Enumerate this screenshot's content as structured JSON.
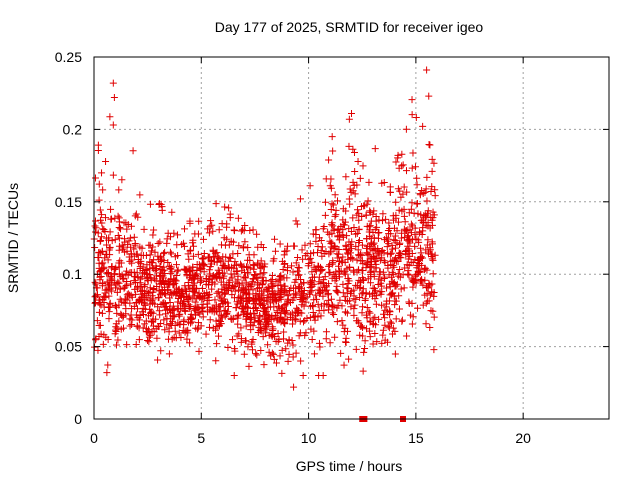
{
  "chart_data": {
    "type": "scatter",
    "title": "Day 177 of 2025, SRMTID for receiver igeo",
    "xlabel": "GPS time / hours",
    "ylabel": "SRMTID / TECUs",
    "xlim": [
      0,
      24
    ],
    "ylim": [
      0,
      0.25
    ],
    "xticks": [
      0,
      5,
      10,
      15,
      20
    ],
    "yticks": [
      0,
      0.05,
      0.1,
      0.15,
      0.2,
      0.25
    ],
    "xtick_labels": [
      "0",
      "5",
      "10",
      "15",
      "20"
    ],
    "ytick_labels": [
      "0",
      "0.05",
      "0.1",
      "0.15",
      "0.2",
      "0.25"
    ],
    "grid": true,
    "marker": "+",
    "color": "#e00000",
    "series": [
      {
        "name": "SRMTID",
        "x_range": [
          0,
          15.9
        ],
        "point_count": 2200,
        "envelope": [
          {
            "t": 0.0,
            "mean": 0.1,
            "spread": 0.035,
            "max": 0.185
          },
          {
            "t": 1.0,
            "mean": 0.1,
            "spread": 0.035,
            "max": 0.232
          },
          {
            "t": 2.0,
            "mean": 0.095,
            "spread": 0.03,
            "max": 0.18
          },
          {
            "t": 3.0,
            "mean": 0.088,
            "spread": 0.025,
            "max": 0.15
          },
          {
            "t": 4.0,
            "mean": 0.085,
            "spread": 0.022,
            "max": 0.14
          },
          {
            "t": 5.0,
            "mean": 0.09,
            "spread": 0.025,
            "max": 0.14
          },
          {
            "t": 6.0,
            "mean": 0.095,
            "spread": 0.027,
            "max": 0.155
          },
          {
            "t": 7.0,
            "mean": 0.085,
            "spread": 0.027,
            "max": 0.145
          },
          {
            "t": 8.0,
            "mean": 0.078,
            "spread": 0.025,
            "max": 0.125
          },
          {
            "t": 9.0,
            "mean": 0.075,
            "spread": 0.025,
            "max": 0.125
          },
          {
            "t": 10.0,
            "mean": 0.09,
            "spread": 0.03,
            "max": 0.17
          },
          {
            "t": 11.0,
            "mean": 0.105,
            "spread": 0.04,
            "max": 0.195
          },
          {
            "t": 12.0,
            "mean": 0.11,
            "spread": 0.045,
            "max": 0.21
          },
          {
            "t": 13.0,
            "mean": 0.1,
            "spread": 0.035,
            "max": 0.19
          },
          {
            "t": 14.0,
            "mean": 0.105,
            "spread": 0.035,
            "max": 0.185
          },
          {
            "t": 15.0,
            "mean": 0.115,
            "spread": 0.04,
            "max": 0.241
          },
          {
            "t": 15.9,
            "mean": 0.115,
            "spread": 0.04,
            "max": 0.18
          }
        ],
        "outliers": [
          {
            "x": 0.9,
            "y": 0.232
          },
          {
            "x": 0.95,
            "y": 0.222
          },
          {
            "x": 0.9,
            "y": 0.203
          },
          {
            "x": 15.5,
            "y": 0.241
          },
          {
            "x": 15.6,
            "y": 0.223
          },
          {
            "x": 12.0,
            "y": 0.211
          },
          {
            "x": 11.9,
            "y": 0.207
          },
          {
            "x": 11.1,
            "y": 0.195
          },
          {
            "x": 0.6,
            "y": 0.032
          },
          {
            "x": 9.3,
            "y": 0.022
          }
        ]
      }
    ],
    "zero_markers": [
      {
        "x": 12.5,
        "y": 0
      },
      {
        "x": 12.6,
        "y": 0
      },
      {
        "x": 14.4,
        "y": 0
      }
    ]
  }
}
